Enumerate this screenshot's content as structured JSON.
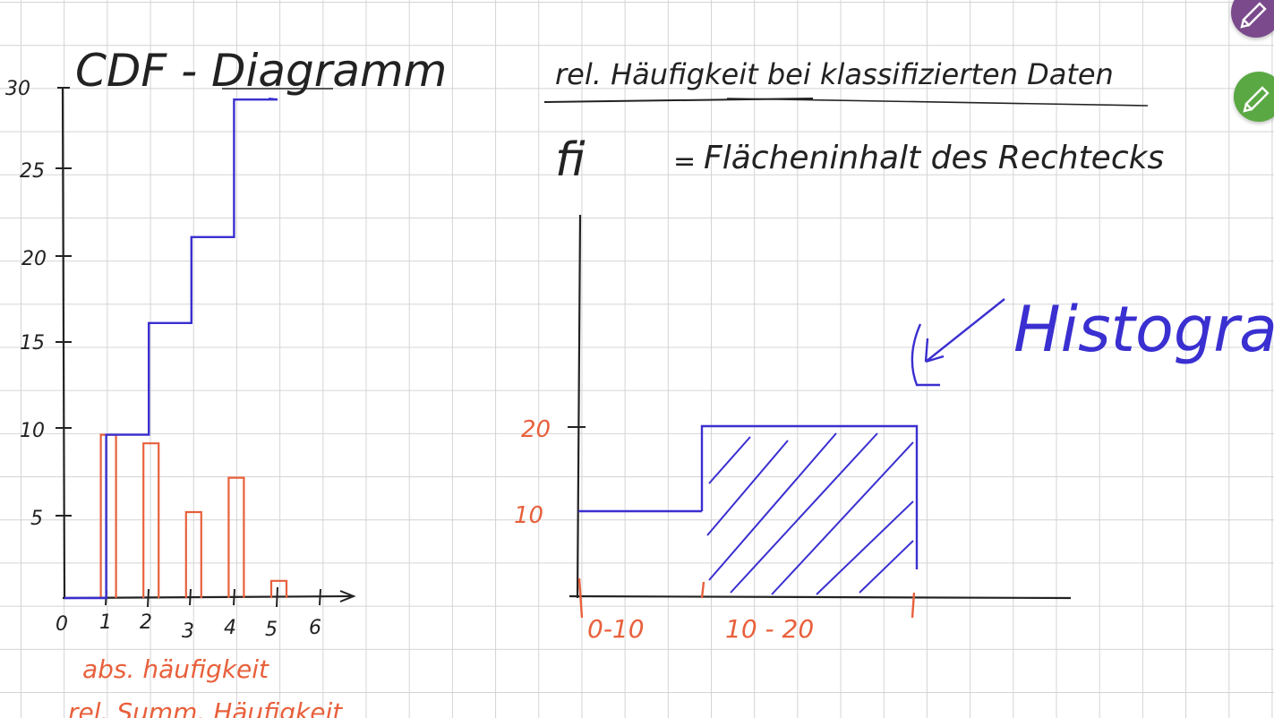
{
  "left": {
    "title": "CDF - Diagramm",
    "y_ticks": [
      "30",
      "25",
      "20",
      "15",
      "10",
      "5"
    ],
    "x_ticks": [
      "0",
      "1",
      "2",
      "3",
      "4",
      "5",
      "6"
    ],
    "note_abs": "abs. häufigkeit",
    "note_rel": "rel. Summ. Häufigkeit"
  },
  "right": {
    "title": "rel. Häufigkeit bei klassifizierten Daten",
    "formula_lhs": "fi",
    "formula_eq": "=",
    "formula_rhs": "Flächeninhalt des Rechtecks",
    "label_histogram": "Histogramm",
    "y_ticks": [
      "20",
      "10"
    ],
    "x_classes": [
      "0-10",
      "10 - 20"
    ]
  },
  "colors": {
    "ink_blue": "#3a2fd0",
    "ink_orange": "#e8603c",
    "ink_black": "#222222",
    "avatar_purple": "#7b4a8c",
    "avatar_green": "#5aa843"
  },
  "avatars": [
    {
      "icon": "pen-icon",
      "count": "1"
    },
    {
      "icon": "pen-icon",
      "count": "1"
    }
  ],
  "chart_data": [
    {
      "type": "line",
      "title": "CDF - Diagramm",
      "x": [
        0,
        1,
        2,
        3,
        4,
        5
      ],
      "series": [
        {
          "values": [
            0,
            9.5,
            16,
            21,
            29,
            29
          ]
        }
      ],
      "bars": {
        "categories": [
          "1",
          "2",
          "3",
          "4",
          "5"
        ],
        "values": [
          9.5,
          9,
          5,
          7,
          1
        ]
      },
      "xlim": [
        0,
        6
      ],
      "ylim": [
        0,
        30
      ]
    },
    {
      "type": "bar",
      "title": "rel. Häufigkeit bei klassifizierten Daten",
      "categories": [
        "0-10",
        "10 - 20"
      ],
      "values": [
        10,
        20
      ],
      "ylim": [
        0,
        20
      ]
    }
  ]
}
